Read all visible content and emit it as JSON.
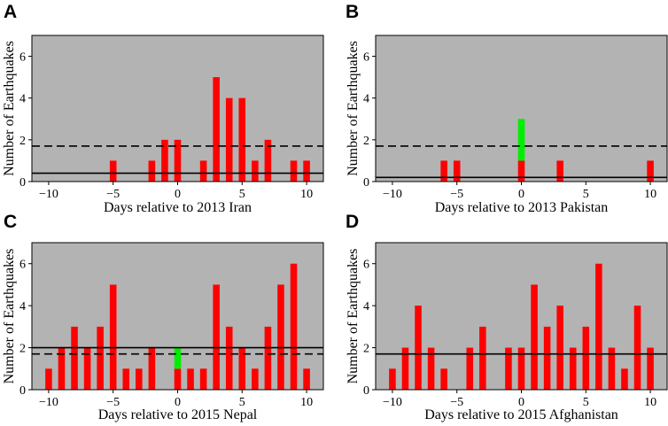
{
  "colors": {
    "background": "#ffffff",
    "plot_bg": "#b3b3b3",
    "bar": "#ff0000",
    "highlight": "#00ee00",
    "line": "#000000"
  },
  "chart_data": [
    {
      "type": "bar",
      "panel": "A",
      "xlabel": "Days relative to 2013 Iran",
      "ylabel": "Number of Earthquakes",
      "xlim": [
        -11.3,
        11.3
      ],
      "ylim": [
        0,
        7
      ],
      "xticks": [
        -10,
        -5,
        0,
        5,
        10
      ],
      "yticks": [
        0,
        2,
        4,
        6
      ],
      "x": [
        -5,
        -2,
        -1,
        0,
        2,
        3,
        4,
        5,
        6,
        7,
        9,
        10
      ],
      "values": [
        1,
        1,
        2,
        2,
        1,
        5,
        4,
        4,
        1,
        2,
        1,
        1
      ],
      "highlight": [],
      "solid_line": 0.4,
      "dashed_line": 1.7
    },
    {
      "type": "bar",
      "panel": "B",
      "xlabel": "Days relative to 2013 Pakistan",
      "ylabel": "Number of Earthquakes",
      "xlim": [
        -11.3,
        11.3
      ],
      "ylim": [
        0,
        7
      ],
      "xticks": [
        -10,
        -5,
        0,
        5,
        10
      ],
      "yticks": [
        0,
        2,
        4,
        6
      ],
      "x": [
        -6,
        -5,
        0,
        3,
        10
      ],
      "values": [
        1,
        1,
        1,
        1,
        1
      ],
      "highlight": [
        {
          "x": 0,
          "from": 1,
          "to": 3
        }
      ],
      "solid_line": 0.2,
      "dashed_line": 1.7
    },
    {
      "type": "bar",
      "panel": "C",
      "xlabel": "Days relative to 2015 Nepal",
      "ylabel": "Number of Earthquakes",
      "xlim": [
        -11.3,
        11.3
      ],
      "ylim": [
        0,
        7
      ],
      "xticks": [
        -10,
        -5,
        0,
        5,
        10
      ],
      "yticks": [
        0,
        2,
        4,
        6
      ],
      "x": [
        -10,
        -9,
        -8,
        -7,
        -6,
        -5,
        -4,
        -3,
        -2,
        0,
        1,
        2,
        3,
        4,
        5,
        6,
        7,
        8,
        9,
        10
      ],
      "values": [
        1,
        2,
        3,
        2,
        3,
        5,
        1,
        1,
        2,
        1,
        1,
        1,
        5,
        3,
        2,
        1,
        3,
        5,
        6,
        1
      ],
      "highlight": [
        {
          "x": 0,
          "from": 1,
          "to": 2
        }
      ],
      "solid_line": 2.0,
      "dashed_line": 1.7
    },
    {
      "type": "bar",
      "panel": "D",
      "xlabel": "Days relative to 2015 Afghanistan",
      "ylabel": "Number of Earthquakes",
      "xlim": [
        -11.3,
        11.3
      ],
      "ylim": [
        0,
        7
      ],
      "xticks": [
        -10,
        -5,
        0,
        5,
        10
      ],
      "yticks": [
        0,
        2,
        4,
        6
      ],
      "x": [
        -10,
        -9,
        -8,
        -7,
        -6,
        -4,
        -3,
        -1,
        0,
        1,
        2,
        3,
        4,
        5,
        6,
        7,
        8,
        9,
        10
      ],
      "values": [
        1,
        2,
        4,
        2,
        1,
        2,
        3,
        2,
        2,
        5,
        3,
        4,
        2,
        3,
        6,
        2,
        1,
        4,
        2
      ],
      "highlight": [],
      "solid_line": 1.7,
      "dashed_line": null
    }
  ]
}
